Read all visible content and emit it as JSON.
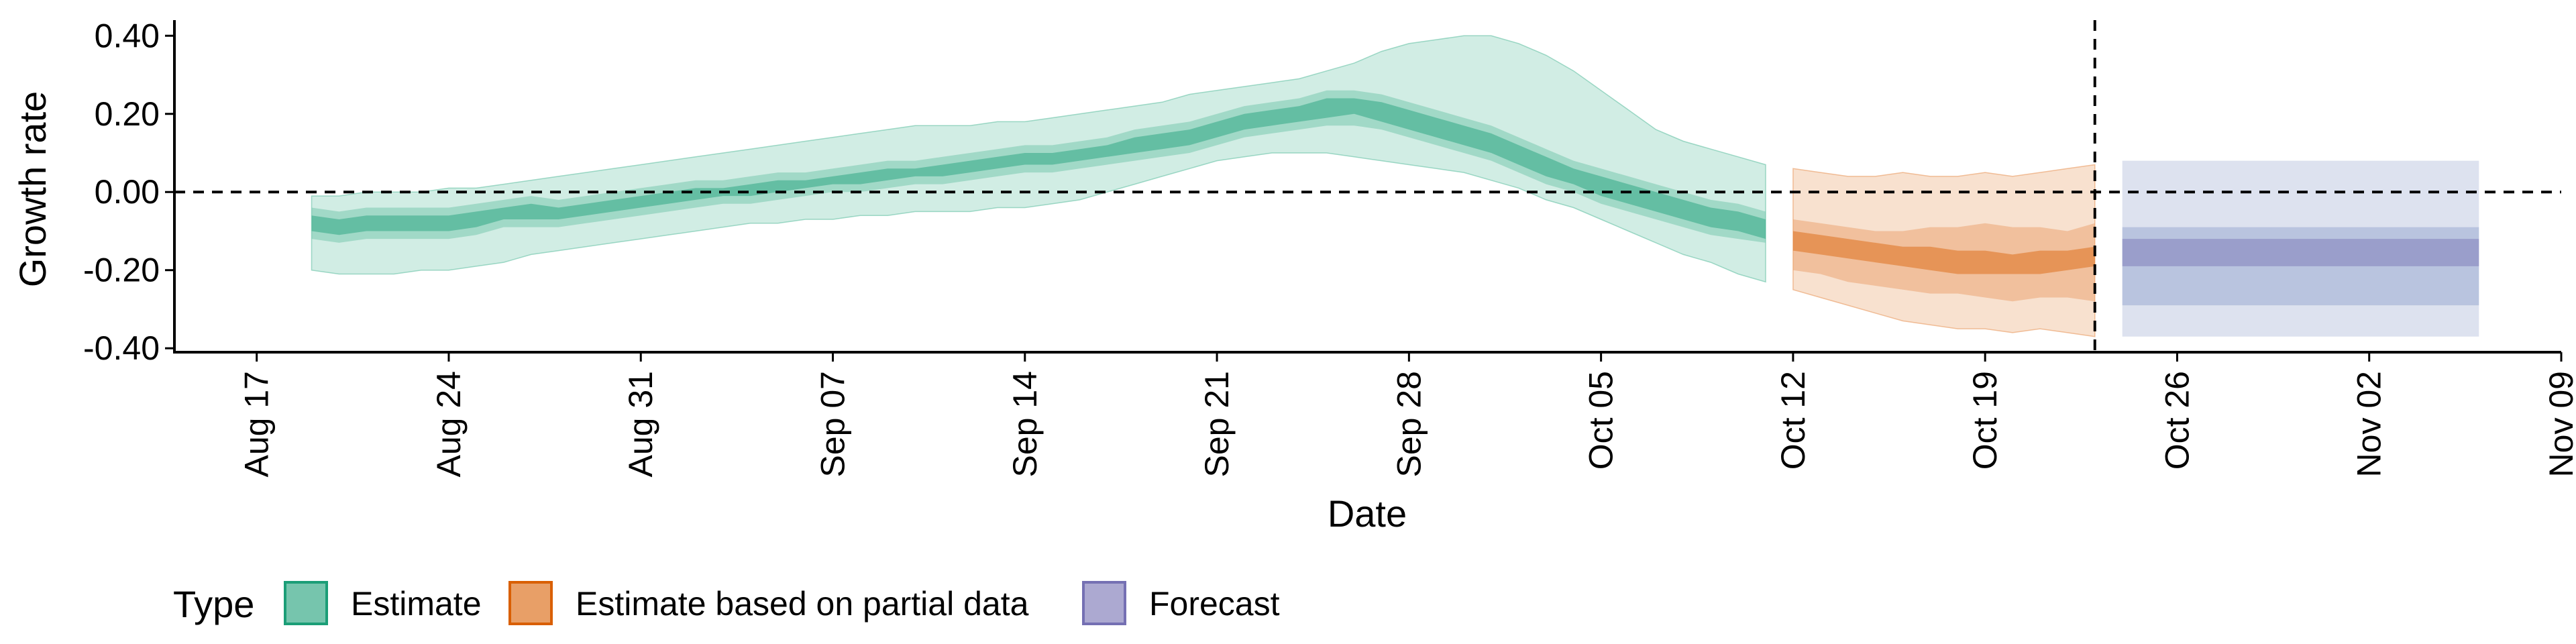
{
  "chart_data": {
    "type": "area",
    "title": "",
    "xlabel": "Date",
    "ylabel": "Growth rate",
    "x_tick_labels": [
      "Aug 17",
      "Aug 24",
      "Aug 31",
      "Sep 07",
      "Sep 14",
      "Sep 21",
      "Sep 28",
      "Oct 05",
      "Oct 12",
      "Oct 19",
      "Oct 26",
      "Nov 02",
      "Nov 09"
    ],
    "y_tick_labels": [
      "-0.40",
      "-0.20",
      "0.00",
      "0.20",
      "0.40"
    ],
    "y_ticks": [
      -0.4,
      -0.2,
      0.0,
      0.2,
      0.4
    ],
    "ylim": [
      -0.41,
      0.44
    ],
    "x_day_range": [
      -3,
      84
    ],
    "x_day_unit": "days since Aug 17",
    "reference_lines": {
      "horizontal_y": 0.0,
      "vertical_date": "Oct 23",
      "vertical_day": 67
    },
    "legend": {
      "title": "Type",
      "position": "bottom",
      "entries": [
        {
          "label": "Estimate",
          "color": "#1b9e77"
        },
        {
          "label": "Estimate based on partial data",
          "color": "#d95f02"
        },
        {
          "label": "Forecast",
          "color": "#7570b3"
        }
      ]
    },
    "series": [
      {
        "name": "Estimate",
        "color": "#1b9e77",
        "fill": "#66c2a5",
        "days": [
          2,
          3,
          4,
          5,
          6,
          7,
          8,
          9,
          10,
          11,
          12,
          13,
          14,
          15,
          16,
          17,
          18,
          19,
          20,
          21,
          22,
          23,
          24,
          25,
          26,
          27,
          28,
          29,
          30,
          31,
          32,
          33,
          34,
          35,
          36,
          37,
          38,
          39,
          40,
          41,
          42,
          43,
          44,
          45,
          46,
          47,
          48,
          49,
          50,
          51,
          52,
          53,
          54,
          55
        ],
        "median": [
          -0.08,
          -0.09,
          -0.08,
          -0.08,
          -0.08,
          -0.08,
          -0.07,
          -0.05,
          -0.05,
          -0.06,
          -0.05,
          -0.03,
          -0.03,
          -0.02,
          -0.01,
          0.0,
          0.0,
          0.01,
          0.02,
          0.03,
          0.04,
          0.04,
          0.05,
          0.06,
          0.07,
          0.07,
          0.08,
          0.09,
          0.1,
          0.11,
          0.12,
          0.13,
          0.14,
          0.16,
          0.18,
          0.19,
          0.2,
          0.22,
          0.22,
          0.21,
          0.19,
          0.17,
          0.15,
          0.13,
          0.1,
          0.07,
          0.04,
          0.02,
          0.0,
          -0.02,
          -0.04,
          -0.06,
          -0.08,
          -0.09
        ],
        "lower_50": [
          -0.1,
          -0.11,
          -0.1,
          -0.1,
          -0.1,
          -0.1,
          -0.09,
          -0.07,
          -0.07,
          -0.07,
          -0.06,
          -0.05,
          -0.04,
          -0.03,
          -0.02,
          -0.01,
          -0.01,
          0.0,
          0.01,
          0.02,
          0.02,
          0.03,
          0.04,
          0.04,
          0.05,
          0.06,
          0.07,
          0.07,
          0.08,
          0.09,
          0.1,
          0.11,
          0.12,
          0.14,
          0.16,
          0.17,
          0.18,
          0.19,
          0.2,
          0.18,
          0.16,
          0.14,
          0.12,
          0.1,
          0.07,
          0.04,
          0.02,
          -0.01,
          -0.03,
          -0.05,
          -0.07,
          -0.09,
          -0.1,
          -0.12
        ],
        "upper_50": [
          -0.06,
          -0.07,
          -0.06,
          -0.06,
          -0.06,
          -0.06,
          -0.05,
          -0.04,
          -0.03,
          -0.04,
          -0.03,
          -0.02,
          -0.01,
          0.0,
          0.01,
          0.01,
          0.02,
          0.03,
          0.03,
          0.04,
          0.05,
          0.06,
          0.06,
          0.07,
          0.08,
          0.09,
          0.1,
          0.1,
          0.11,
          0.12,
          0.14,
          0.15,
          0.16,
          0.18,
          0.2,
          0.21,
          0.22,
          0.24,
          0.24,
          0.23,
          0.21,
          0.19,
          0.17,
          0.15,
          0.12,
          0.09,
          0.06,
          0.04,
          0.02,
          0.0,
          -0.02,
          -0.04,
          -0.05,
          -0.07
        ],
        "lower_90": [
          -0.12,
          -0.13,
          -0.12,
          -0.12,
          -0.12,
          -0.12,
          -0.11,
          -0.09,
          -0.09,
          -0.09,
          -0.08,
          -0.07,
          -0.06,
          -0.05,
          -0.04,
          -0.03,
          -0.03,
          -0.02,
          -0.01,
          0.0,
          0.0,
          0.01,
          0.02,
          0.02,
          0.03,
          0.04,
          0.05,
          0.05,
          0.06,
          0.07,
          0.08,
          0.09,
          0.1,
          0.12,
          0.14,
          0.15,
          0.16,
          0.17,
          0.17,
          0.16,
          0.14,
          0.12,
          0.1,
          0.08,
          0.05,
          0.02,
          0.0,
          -0.03,
          -0.05,
          -0.07,
          -0.09,
          -0.11,
          -0.12,
          -0.13
        ],
        "upper_90": [
          -0.04,
          -0.05,
          -0.04,
          -0.04,
          -0.04,
          -0.04,
          -0.03,
          -0.02,
          -0.01,
          -0.02,
          -0.01,
          0.0,
          0.01,
          0.02,
          0.03,
          0.03,
          0.04,
          0.05,
          0.05,
          0.06,
          0.07,
          0.08,
          0.08,
          0.09,
          0.1,
          0.11,
          0.12,
          0.12,
          0.13,
          0.14,
          0.16,
          0.17,
          0.18,
          0.2,
          0.22,
          0.23,
          0.24,
          0.26,
          0.26,
          0.25,
          0.23,
          0.21,
          0.19,
          0.17,
          0.14,
          0.11,
          0.08,
          0.06,
          0.04,
          0.02,
          0.0,
          -0.02,
          -0.03,
          -0.05
        ],
        "lower_ci": [
          -0.2,
          -0.21,
          -0.21,
          -0.21,
          -0.2,
          -0.2,
          -0.19,
          -0.18,
          -0.16,
          -0.15,
          -0.14,
          -0.13,
          -0.12,
          -0.11,
          -0.1,
          -0.09,
          -0.08,
          -0.08,
          -0.07,
          -0.07,
          -0.06,
          -0.06,
          -0.05,
          -0.05,
          -0.05,
          -0.04,
          -0.04,
          -0.03,
          -0.02,
          0.0,
          0.02,
          0.04,
          0.06,
          0.08,
          0.09,
          0.1,
          0.1,
          0.1,
          0.09,
          0.08,
          0.07,
          0.06,
          0.05,
          0.03,
          0.01,
          -0.02,
          -0.04,
          -0.07,
          -0.1,
          -0.13,
          -0.16,
          -0.18,
          -0.21,
          -0.23
        ],
        "upper_ci": [
          -0.01,
          -0.01,
          0.0,
          0.0,
          0.0,
          0.01,
          0.01,
          0.02,
          0.03,
          0.04,
          0.05,
          0.06,
          0.07,
          0.08,
          0.09,
          0.1,
          0.11,
          0.12,
          0.13,
          0.14,
          0.15,
          0.16,
          0.17,
          0.17,
          0.17,
          0.18,
          0.18,
          0.19,
          0.2,
          0.21,
          0.22,
          0.23,
          0.25,
          0.26,
          0.27,
          0.28,
          0.29,
          0.31,
          0.33,
          0.36,
          0.38,
          0.39,
          0.4,
          0.4,
          0.38,
          0.35,
          0.31,
          0.26,
          0.21,
          0.16,
          0.13,
          0.11,
          0.09,
          0.07
        ]
      },
      {
        "name": "Estimate based on partial data",
        "color": "#d95f02",
        "fill": "#e99a5f",
        "days": [
          56,
          57,
          58,
          59,
          60,
          61,
          62,
          63,
          64,
          65,
          66,
          67
        ],
        "median": [
          -0.13,
          -0.14,
          -0.15,
          -0.16,
          -0.17,
          -0.17,
          -0.18,
          -0.18,
          -0.19,
          -0.18,
          -0.18,
          -0.17
        ],
        "lower_50": [
          -0.15,
          -0.16,
          -0.17,
          -0.18,
          -0.19,
          -0.2,
          -0.21,
          -0.21,
          -0.21,
          -0.21,
          -0.2,
          -0.19
        ],
        "upper_50": [
          -0.1,
          -0.11,
          -0.12,
          -0.13,
          -0.14,
          -0.14,
          -0.15,
          -0.15,
          -0.16,
          -0.15,
          -0.15,
          -0.14
        ],
        "lower_90": [
          -0.2,
          -0.21,
          -0.23,
          -0.24,
          -0.25,
          -0.26,
          -0.26,
          -0.27,
          -0.28,
          -0.27,
          -0.27,
          -0.28
        ],
        "upper_90": [
          -0.07,
          -0.08,
          -0.09,
          -0.1,
          -0.1,
          -0.09,
          -0.09,
          -0.08,
          -0.09,
          -0.09,
          -0.1,
          -0.08
        ],
        "lower_ci": [
          -0.25,
          -0.27,
          -0.29,
          -0.31,
          -0.33,
          -0.34,
          -0.35,
          -0.35,
          -0.36,
          -0.35,
          -0.36,
          -0.37
        ],
        "upper_ci": [
          0.06,
          0.05,
          0.04,
          0.04,
          0.05,
          0.04,
          0.04,
          0.05,
          0.04,
          0.05,
          0.06,
          0.07
        ]
      },
      {
        "name": "Forecast",
        "color": "#7570b3",
        "fill": "#8da0cb",
        "days": [
          68,
          81
        ],
        "median": [
          -0.155,
          -0.155
        ],
        "lower_50": [
          -0.19,
          -0.19
        ],
        "upper_50": [
          -0.12,
          -0.12
        ],
        "lower_90": [
          -0.29,
          -0.29
        ],
        "upper_90": [
          -0.09,
          -0.09
        ],
        "lower_ci": [
          -0.37,
          -0.37
        ],
        "upper_ci": [
          0.08,
          0.08
        ]
      }
    ]
  }
}
